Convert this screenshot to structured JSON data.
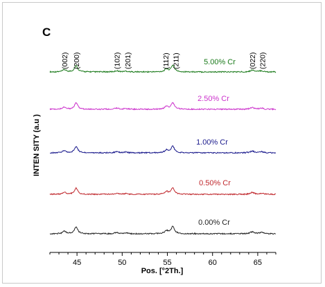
{
  "chart_data": {
    "type": "line",
    "panel_label": "C",
    "xlabel": "Pos. [°2Th.]",
    "ylabel": "INTEN SITY (a.u )",
    "xlim": [
      42,
      67
    ],
    "xticks": [
      45,
      50,
      55,
      60,
      65
    ],
    "grid": false,
    "peak_labels": [
      {
        "text": "(002)",
        "x": 43.6
      },
      {
        "text": "(200)",
        "x": 44.9
      },
      {
        "text": "(102)",
        "x": 49.4
      },
      {
        "text": "(201)",
        "x": 50.6
      },
      {
        "text": "(112)",
        "x": 54.8
      },
      {
        "text": "(211)",
        "x": 55.9
      },
      {
        "text": "(022)",
        "x": 64.4
      },
      {
        "text": "(220)",
        "x": 65.5
      }
    ],
    "peaks": [
      {
        "x": 43.6,
        "height": 0.35,
        "width": 0.22
      },
      {
        "x": 44.9,
        "height": 1.0,
        "width": 0.22
      },
      {
        "x": 49.4,
        "height": 0.18,
        "width": 0.25
      },
      {
        "x": 50.4,
        "height": 0.12,
        "width": 0.25
      },
      {
        "x": 54.9,
        "height": 0.45,
        "width": 0.22
      },
      {
        "x": 55.6,
        "height": 1.05,
        "width": 0.22
      },
      {
        "x": 64.4,
        "height": 0.3,
        "width": 0.25
      },
      {
        "x": 65.4,
        "height": 0.18,
        "width": 0.25
      }
    ],
    "series": [
      {
        "name": "5.00% Cr",
        "color": "#1a7a1a",
        "scale": 1.0
      },
      {
        "name": "2.50% Cr",
        "color": "#cc33cc",
        "scale": 1.0
      },
      {
        "name": "1.00% Cr",
        "color": "#1a1a8c",
        "scale": 1.0
      },
      {
        "name": "0.50% Cr",
        "color": "#c0282d",
        "scale": 1.0
      },
      {
        "name": "0.00% Cr",
        "color": "#222222",
        "scale": 1.1
      }
    ]
  }
}
